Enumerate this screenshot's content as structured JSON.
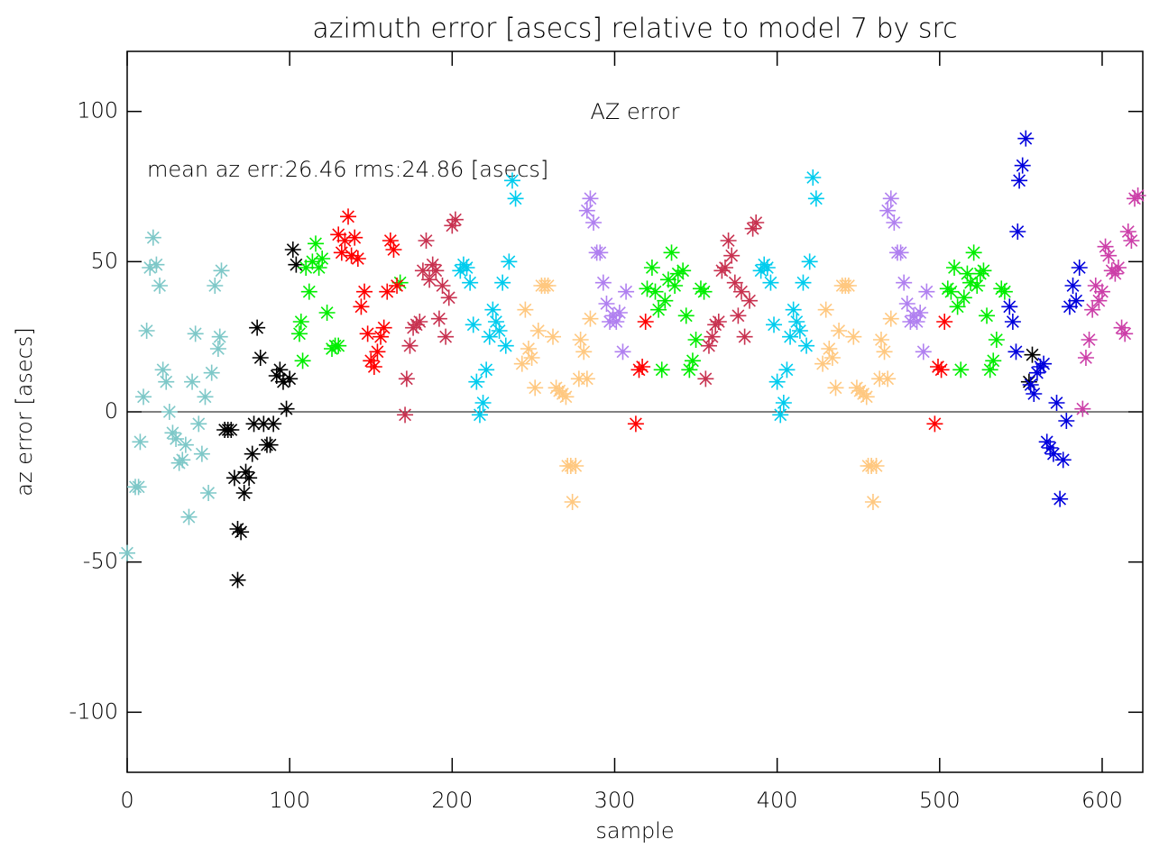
{
  "chart_data": {
    "type": "scatter",
    "title": "azimuth error [asecs] relative to model 7 by src",
    "xlabel": "sample",
    "ylabel": "az error [asecs]",
    "annotations": [
      "AZ error",
      "mean az err:26.46 rms:24.86 [asecs]"
    ],
    "xlim": [
      0,
      625
    ],
    "ylim": [
      -120,
      120
    ],
    "xticks": [
      0,
      100,
      200,
      300,
      400,
      500,
      600
    ],
    "yticks": [
      -100,
      -50,
      0,
      50,
      100
    ],
    "series": [
      {
        "color": "#7ec8c8",
        "x": [
          0,
          5,
          7,
          8,
          10,
          12,
          14,
          16,
          18,
          20,
          22,
          24,
          26,
          28,
          30,
          32,
          34,
          36,
          38,
          40,
          42,
          44,
          46,
          48,
          50,
          52,
          54,
          56,
          57,
          58
        ],
        "values": [
          -47,
          -25,
          -25,
          -10,
          5,
          27,
          48,
          58,
          49,
          42,
          14,
          10,
          0,
          -7,
          -9,
          -17,
          -16,
          -11,
          -35,
          10,
          26,
          -4,
          -14,
          5,
          -27,
          13,
          42,
          21,
          25,
          47
        ]
      },
      {
        "color": "#000000",
        "x": [
          60,
          62,
          64,
          66,
          68,
          68,
          70,
          72,
          73,
          75,
          77,
          78,
          80,
          82,
          84,
          86,
          88,
          90,
          92,
          94,
          96,
          98,
          100,
          102,
          104,
          555,
          557
        ],
        "values": [
          -6,
          -6,
          -6,
          -22,
          -39,
          -56,
          -40,
          -27,
          -20,
          -22,
          -14,
          -4,
          28,
          18,
          -4,
          -11,
          -11,
          -4,
          12,
          14,
          10,
          1,
          11,
          54,
          49,
          10,
          19
        ]
      },
      {
        "color": "#00ee00",
        "x": [
          106,
          107,
          108,
          110,
          112,
          114,
          116,
          118,
          120,
          123,
          126,
          128,
          130,
          168,
          320,
          323,
          325,
          327,
          329,
          331,
          333,
          335,
          337,
          339,
          342,
          344,
          346,
          348,
          350,
          353,
          355,
          505,
          507,
          509,
          511,
          513,
          515,
          517,
          519,
          521,
          523,
          525,
          527,
          529,
          531,
          533,
          535,
          538,
          540
        ],
        "values": [
          26,
          30,
          17,
          48,
          40,
          50,
          56,
          48,
          51,
          33,
          21,
          22,
          22,
          43,
          41,
          48,
          40,
          34,
          14,
          37,
          44,
          53,
          42,
          46,
          47,
          32,
          14,
          17,
          24,
          41,
          40,
          41,
          40,
          48,
          35,
          14,
          38,
          46,
          43,
          53,
          42,
          46,
          47,
          32,
          14,
          17,
          24,
          41,
          40
        ]
      },
      {
        "color": "#ff0000",
        "x": [
          130,
          132,
          134,
          136,
          138,
          140,
          142,
          144,
          146,
          148,
          150,
          152,
          154,
          156,
          158,
          160,
          162,
          164,
          166,
          313,
          315,
          317,
          319,
          497,
          499,
          501,
          503
        ],
        "values": [
          59,
          53,
          57,
          65,
          52,
          58,
          51,
          35,
          40,
          26,
          17,
          15,
          20,
          25,
          28,
          40,
          57,
          54,
          42,
          -4,
          14,
          15,
          30,
          -4,
          15,
          14,
          30
        ]
      },
      {
        "color": "#c83250",
        "x": [
          171,
          172,
          174,
          176,
          178,
          180,
          182,
          184,
          186,
          188,
          190,
          192,
          194,
          196,
          198,
          200,
          202,
          356,
          358,
          360,
          362,
          364,
          366,
          368,
          370,
          372,
          374,
          376,
          378,
          380,
          383,
          385,
          387
        ],
        "values": [
          -1,
          11,
          22,
          28,
          29,
          30,
          47,
          57,
          44,
          49,
          47,
          31,
          42,
          25,
          38,
          62,
          64,
          11,
          22,
          25,
          29,
          30,
          47,
          48,
          57,
          52,
          43,
          32,
          40,
          25,
          37,
          61,
          63
        ]
      },
      {
        "color": "#00ccee",
        "x": [
          205,
          207,
          209,
          211,
          213,
          215,
          217,
          219,
          221,
          223,
          225,
          227,
          229,
          231,
          233,
          235,
          237,
          239,
          390,
          392,
          394,
          396,
          398,
          400,
          402,
          404,
          406,
          408,
          410,
          412,
          414,
          416,
          418,
          420,
          422,
          424
        ],
        "values": [
          47,
          49,
          48,
          43,
          29,
          10,
          -1,
          3,
          14,
          25,
          34,
          30,
          27,
          43,
          22,
          50,
          77,
          71,
          47,
          49,
          48,
          43,
          29,
          10,
          -1,
          3,
          14,
          25,
          34,
          30,
          27,
          43,
          22,
          50,
          78,
          71
        ]
      },
      {
        "color": "#ffc880",
        "x": [
          243,
          245,
          247,
          249,
          251,
          253,
          255,
          257,
          259,
          262,
          264,
          266,
          268,
          270,
          271,
          273,
          274,
          276,
          278,
          279,
          281,
          283,
          285,
          428,
          430,
          432,
          434,
          436,
          438,
          440,
          442,
          444,
          447,
          449,
          451,
          453,
          455,
          456,
          458,
          459,
          461,
          463,
          464,
          466,
          468,
          470
        ],
        "values": [
          16,
          34,
          21,
          18,
          8,
          27,
          42,
          42,
          42,
          25,
          8,
          7,
          6,
          5,
          -18,
          -18,
          -30,
          -18,
          11,
          24,
          20,
          11,
          31,
          16,
          34,
          21,
          18,
          8,
          27,
          42,
          42,
          42,
          25,
          8,
          7,
          6,
          5,
          -18,
          -18,
          -30,
          -18,
          11,
          24,
          20,
          11,
          31
        ]
      },
      {
        "color": "#b080f0",
        "x": [
          283,
          285,
          287,
          289,
          291,
          293,
          295,
          297,
          299,
          301,
          303,
          305,
          307,
          468,
          470,
          472,
          474,
          476,
          478,
          480,
          482,
          484,
          486,
          488,
          490,
          492
        ],
        "values": [
          67,
          71,
          63,
          53,
          53,
          43,
          36,
          30,
          32,
          30,
          33,
          20,
          40,
          67,
          71,
          63,
          53,
          53,
          43,
          36,
          30,
          32,
          30,
          33,
          20,
          40
        ]
      },
      {
        "color": "#0000dd",
        "x": [
          543,
          545,
          547,
          548,
          549,
          551,
          553,
          556,
          558,
          560,
          562,
          564,
          566,
          568,
          570,
          572,
          574,
          576,
          578,
          580,
          582,
          584,
          586
        ],
        "values": [
          35,
          30,
          20,
          60,
          77,
          82,
          91,
          9,
          6,
          13,
          15,
          16,
          -10,
          -12,
          -14,
          3,
          -29,
          -16,
          -3,
          35,
          42,
          37,
          48
        ]
      },
      {
        "color": "#cc3fa8",
        "x": [
          588,
          590,
          592,
          594,
          596,
          598,
          600,
          602,
          604,
          606,
          608,
          610,
          612,
          614,
          616,
          618,
          620,
          622
        ],
        "values": [
          1,
          18,
          24,
          34,
          42,
          37,
          40,
          55,
          52,
          47,
          46,
          48,
          28,
          26,
          60,
          57,
          71,
          72
        ]
      }
    ]
  }
}
